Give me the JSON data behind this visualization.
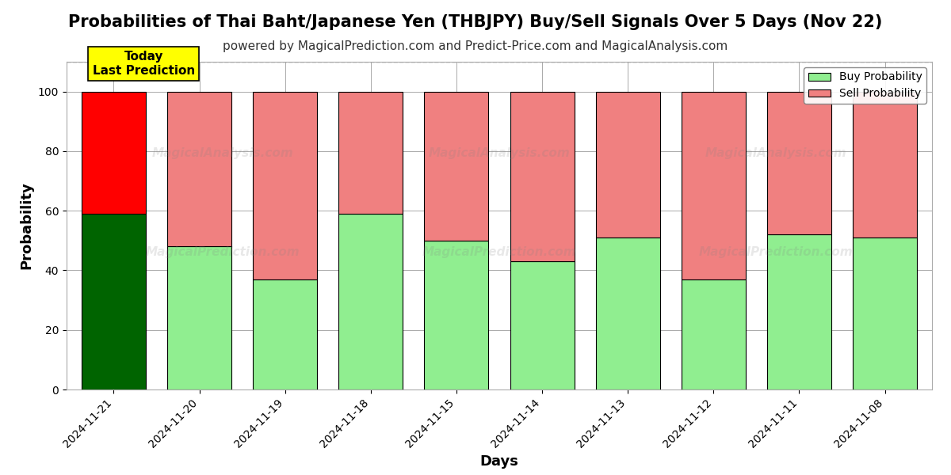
{
  "title": "Probabilities of Thai Baht/Japanese Yen (THBJPY) Buy/Sell Signals Over 5 Days (Nov 22)",
  "subtitle": "powered by MagicalPrediction.com and Predict-Price.com and MagicalAnalysis.com",
  "xlabel": "Days",
  "ylabel": "Probability",
  "categories": [
    "2024-11-21",
    "2024-11-20",
    "2024-11-19",
    "2024-11-18",
    "2024-11-15",
    "2024-11-14",
    "2024-11-13",
    "2024-11-12",
    "2024-11-11",
    "2024-11-08"
  ],
  "buy_values": [
    59,
    48,
    37,
    59,
    50,
    43,
    51,
    37,
    52,
    51
  ],
  "sell_values": [
    41,
    52,
    63,
    41,
    50,
    57,
    49,
    63,
    48,
    49
  ],
  "buy_color_today": "#006400",
  "sell_color_today": "#ff0000",
  "buy_color_other": "#90EE90",
  "sell_color_other": "#F08080",
  "bar_edge_color": "#000000",
  "today_label_bg": "#ffff00",
  "today_label_text": "Today\nLast Prediction",
  "legend_buy": "Buy Probability",
  "legend_sell": "Sell Probability",
  "ylim_max": 110,
  "yticks": [
    0,
    20,
    40,
    60,
    80,
    100
  ],
  "dashed_line_y": 110,
  "watermark1": "MagicalAnalysis.com",
  "watermark2": "MagicalPrediction.com",
  "background_color": "#ffffff",
  "grid_color": "#aaaaaa",
  "title_fontsize": 15,
  "subtitle_fontsize": 11,
  "axis_label_fontsize": 13,
  "tick_fontsize": 10,
  "legend_fontsize": 10,
  "bar_width": 0.75
}
